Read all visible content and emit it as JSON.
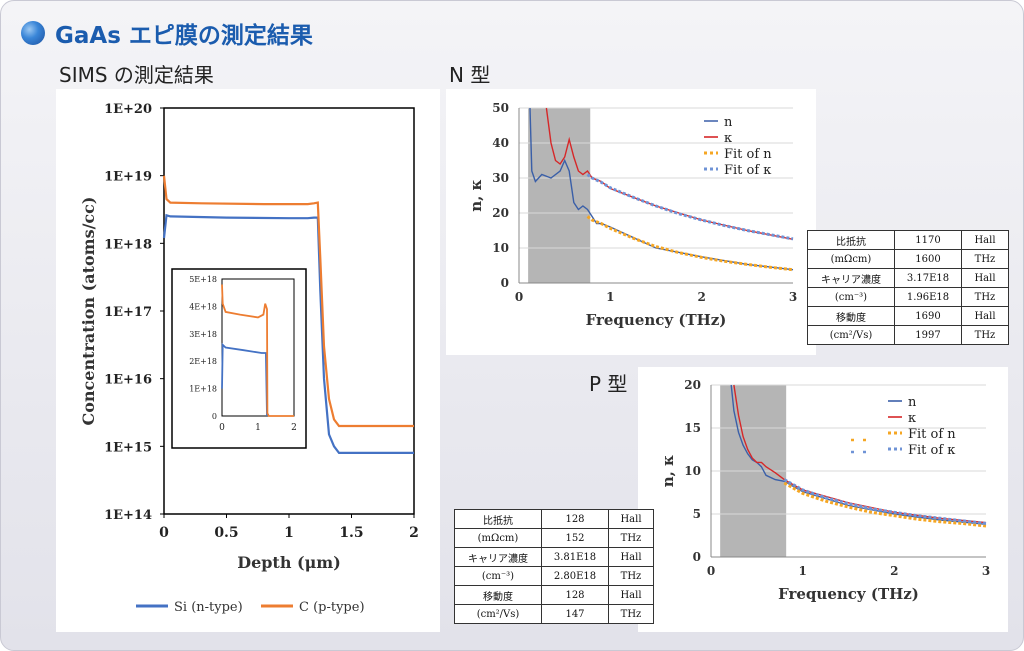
{
  "title": "GaAs エピ膜の測定結果",
  "colors": {
    "title": "#1b5cae",
    "si": "#4472c4",
    "c": "#ed7d31",
    "n": "#3a5fa8",
    "k": "#d62728",
    "fit_n": "#f5a623",
    "fit_k": "#6f93d6",
    "shade": "#b5b5b5"
  },
  "sims": {
    "heading": "SIMS の測定結果",
    "chart_data": {
      "type": "line",
      "xlabel": "Depth (μm)",
      "ylabel": "Concentration (atoms/cc)",
      "x_ticks": [
        "0",
        "0.5",
        "1",
        "1.5",
        "2"
      ],
      "y_ticks": [
        "1E+14",
        "1E+15",
        "1E+16",
        "1E+17",
        "1E+18",
        "1E+19",
        "1E+20"
      ],
      "xlim": [
        0,
        2
      ],
      "ylim_log10": [
        14,
        20
      ],
      "legend": [
        "Si (n-type)",
        "C (p-type)"
      ],
      "legend_position": "bottom",
      "series": [
        {
          "name": "Si (n-type)",
          "color": "#4472c4",
          "x": [
            0,
            0.02,
            0.05,
            0.5,
            1.0,
            1.15,
            1.2,
            1.23,
            1.25,
            1.28,
            1.32,
            1.36,
            1.4,
            1.5,
            2.0
          ],
          "y": [
            1.2e+18,
            2.6e+18,
            2.5e+18,
            2.4e+18,
            2.35e+18,
            2.35e+18,
            2.4e+18,
            2.4e+18,
            2e+17,
            1e+16,
            1500000000000000.0,
            1000000000000000.0,
            800000000000000.0,
            800000000000000.0,
            800000000000000.0
          ]
        },
        {
          "name": "C (p-type)",
          "color": "#ed7d31",
          "x": [
            0,
            0.02,
            0.05,
            0.3,
            0.8,
            1.15,
            1.2,
            1.23,
            1.25,
            1.28,
            1.32,
            1.36,
            1.4,
            1.5,
            2.0
          ],
          "y": [
            1e+19,
            4.5e+18,
            4e+18,
            3.9e+18,
            3.8e+18,
            3.8e+18,
            3.9e+18,
            4e+18,
            6e+17,
            3e+16,
            5000000000000000.0,
            2500000000000000.0,
            2000000000000000.0,
            2000000000000000.0,
            2000000000000000.0
          ]
        }
      ],
      "inset": {
        "y_ticks": [
          "0",
          "1E+18",
          "2E+18",
          "3E+18",
          "4E+18",
          "5E+18"
        ],
        "x_ticks": [
          "0",
          "1",
          "2"
        ],
        "xlim": [
          0,
          2
        ],
        "ylim": [
          0,
          5e+18
        ],
        "series": [
          {
            "name": "Si (n-type)",
            "x": [
              0,
              0.02,
              0.1,
              0.6,
              1.1,
              1.2,
              1.22,
              1.25
            ],
            "y": [
              1e+18,
              2.6e+18,
              2.5e+18,
              2.4e+18,
              2.3e+18,
              2.3e+18,
              2.3e+18,
              0
            ]
          },
          {
            "name": "C (p-type)",
            "x": [
              0,
              0.02,
              0.1,
              0.5,
              1.0,
              1.15,
              1.2,
              1.25,
              1.26,
              1.3,
              2.0
            ],
            "y": [
              4.8e+18,
              4.1e+18,
              3.8e+18,
              3.7e+18,
              3.6e+18,
              3.7e+18,
              4.1e+18,
              3.9e+18,
              1e+17,
              0,
              0
            ]
          }
        ]
      }
    }
  },
  "n_type": {
    "heading": "N 型",
    "chart_data": {
      "type": "line",
      "xlabel": "Frequency (THz)",
      "ylabel": "n, κ",
      "x_ticks": [
        "0",
        "1",
        "2",
        "3"
      ],
      "y_ticks": [
        "0",
        "10",
        "20",
        "30",
        "40",
        "50"
      ],
      "xlim": [
        0,
        3
      ],
      "ylim": [
        0,
        50
      ],
      "shaded_region": [
        0.1,
        0.78
      ],
      "legend": [
        "n",
        "κ",
        "Fit of n",
        "Fit of κ"
      ],
      "legend_position": "top-right",
      "series": [
        {
          "name": "n",
          "x": [
            0.12,
            0.14,
            0.18,
            0.25,
            0.35,
            0.45,
            0.5,
            0.55,
            0.6,
            0.65,
            0.7,
            0.75,
            0.8,
            0.85,
            0.9,
            1.0,
            1.5,
            2.0,
            2.5,
            3.0
          ],
          "y": [
            50,
            32,
            29,
            31,
            30,
            32,
            35,
            32,
            23,
            21,
            22,
            21,
            19,
            17,
            17,
            16,
            10,
            7.5,
            5.3,
            3.8
          ]
        },
        {
          "name": "κ",
          "x": [
            0.3,
            0.35,
            0.4,
            0.45,
            0.5,
            0.55,
            0.6,
            0.65,
            0.7,
            0.75,
            0.8,
            0.9,
            1.0,
            1.5,
            2.0,
            2.5,
            3.0
          ],
          "y": [
            50,
            40,
            35,
            34,
            36,
            41,
            36,
            32,
            31,
            32,
            30,
            29,
            27,
            22,
            18,
            15,
            12.5
          ]
        },
        {
          "name": "Fit of n",
          "x": [
            0.75,
            0.8,
            0.9,
            1.0,
            1.25,
            1.5,
            1.75,
            2.0,
            2.25,
            2.5,
            2.75,
            3.0
          ],
          "y": [
            19,
            18,
            17,
            15.6,
            12.8,
            10.4,
            8.7,
            7.3,
            6.2,
            5.3,
            4.5,
            3.8
          ]
        },
        {
          "name": "Fit of κ",
          "x": [
            0.75,
            0.8,
            0.9,
            1.0,
            1.25,
            1.5,
            1.75,
            2.0,
            2.25,
            2.5,
            2.75,
            3.0
          ],
          "y": [
            31,
            30,
            28.8,
            27.2,
            24.5,
            22,
            19.8,
            18,
            16.4,
            15,
            13.8,
            12.6
          ]
        }
      ]
    },
    "table": [
      [
        "比抵抗",
        "1170",
        "Hall"
      ],
      [
        "(mΩcm)",
        "1600",
        "THz"
      ],
      [
        "キャリア濃度",
        "3.17E18",
        "Hall"
      ],
      [
        "(cm⁻³)",
        "1.96E18",
        "THz"
      ],
      [
        "移動度",
        "1690",
        "Hall"
      ],
      [
        "(cm²/Vs)",
        "1997",
        "THz"
      ]
    ]
  },
  "p_type": {
    "heading": "P 型",
    "chart_data": {
      "type": "line",
      "xlabel": "Frequency (THz)",
      "ylabel": "n, κ",
      "x_ticks": [
        "0",
        "1",
        "2",
        "3"
      ],
      "y_ticks": [
        "0",
        "5",
        "10",
        "15",
        "20"
      ],
      "xlim": [
        0,
        3
      ],
      "ylim": [
        0,
        20
      ],
      "shaded_region": [
        0.1,
        0.82
      ],
      "legend": [
        "n",
        "κ",
        "Fit of n",
        "Fit of κ"
      ],
      "legend_position": "top-right",
      "series": [
        {
          "name": "n",
          "x": [
            0.22,
            0.25,
            0.3,
            0.35,
            0.4,
            0.45,
            0.5,
            0.55,
            0.6,
            0.7,
            0.8,
            0.9,
            1.0,
            1.5,
            2.0,
            2.5,
            3.0
          ],
          "y": [
            20,
            17,
            14.5,
            13,
            12,
            11.3,
            11,
            10.5,
            9.5,
            9,
            8.8,
            8.2,
            7.6,
            6,
            5,
            4.3,
            3.8
          ]
        },
        {
          "name": "κ",
          "x": [
            0.25,
            0.3,
            0.35,
            0.4,
            0.45,
            0.5,
            0.55,
            0.6,
            0.7,
            0.8,
            0.9,
            1.0,
            1.5,
            2.0,
            2.5,
            3.0
          ],
          "y": [
            20,
            16.5,
            14,
            12.5,
            11.5,
            11,
            11,
            10.5,
            9.8,
            9,
            8.4,
            7.8,
            6.3,
            5.2,
            4.5,
            4
          ]
        },
        {
          "name": "Fit of n",
          "x": [
            0.8,
            0.9,
            1.0,
            1.25,
            1.5,
            1.75,
            2.0,
            2.25,
            2.5,
            2.75,
            3.0
          ],
          "y": [
            8.6,
            8.0,
            7.4,
            6.5,
            5.8,
            5.2,
            4.8,
            4.4,
            4.1,
            3.9,
            3.6
          ]
        },
        {
          "name": "Fit of κ",
          "x": [
            0.8,
            0.9,
            1.0,
            1.25,
            1.5,
            1.75,
            2.0,
            2.25,
            2.5,
            2.75,
            3.0
          ],
          "y": [
            9.0,
            8.4,
            7.8,
            6.9,
            6.2,
            5.6,
            5.2,
            4.8,
            4.5,
            4.2,
            3.9
          ]
        }
      ]
    },
    "table": [
      [
        "比抵抗",
        "128",
        "Hall"
      ],
      [
        "(mΩcm)",
        "152",
        "THz"
      ],
      [
        "キャリア濃度",
        "3.81E18",
        "Hall"
      ],
      [
        "(cm⁻³)",
        "2.80E18",
        "THz"
      ],
      [
        "移動度",
        "128",
        "Hall"
      ],
      [
        "(cm²/Vs)",
        "147",
        "THz"
      ]
    ]
  }
}
